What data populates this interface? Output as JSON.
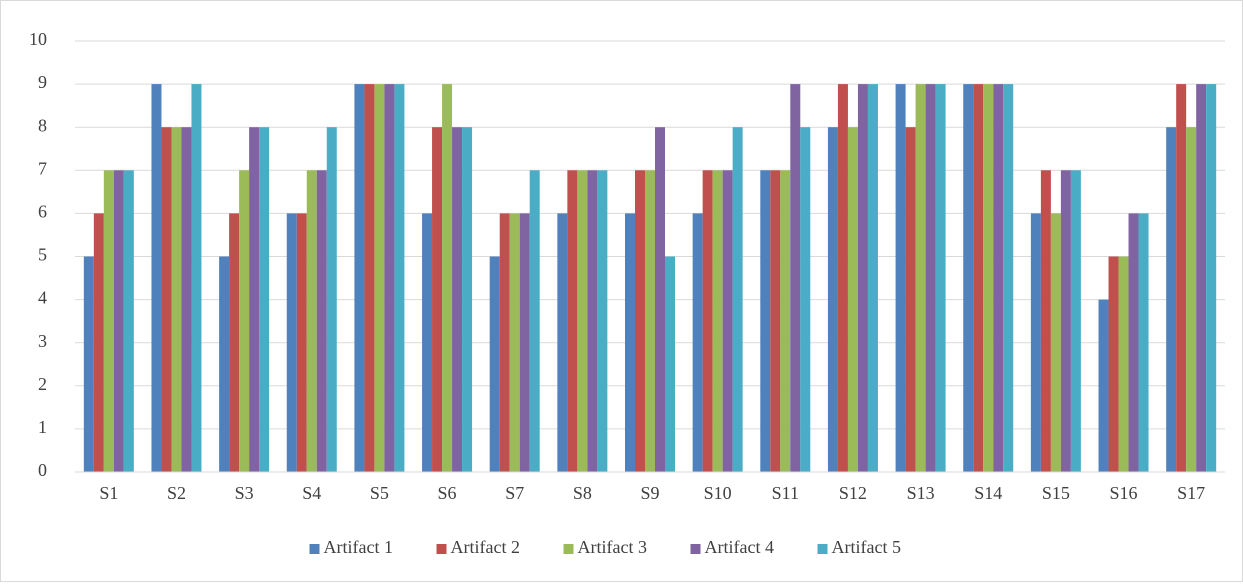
{
  "chart_data": {
    "type": "bar",
    "categories": [
      "S1",
      "S2",
      "S3",
      "S4",
      "S5",
      "S6",
      "S7",
      "S8",
      "S9",
      "S10",
      "S11",
      "S12",
      "S13",
      "S14",
      "S15",
      "S16",
      "S17"
    ],
    "series": [
      {
        "name": "Artifact 1",
        "color": "#4f81bd",
        "values": [
          5,
          9,
          5,
          6,
          9,
          6,
          5,
          6,
          6,
          6,
          7,
          8,
          9,
          9,
          6,
          4,
          8
        ]
      },
      {
        "name": "Artifact 2",
        "color": "#c0504d",
        "values": [
          6,
          8,
          6,
          6,
          9,
          8,
          6,
          7,
          7,
          7,
          7,
          9,
          8,
          9,
          7,
          5,
          9
        ]
      },
      {
        "name": "Artifact 3",
        "color": "#9bbb59",
        "values": [
          7,
          8,
          7,
          7,
          9,
          9,
          6,
          7,
          7,
          7,
          7,
          8,
          9,
          9,
          6,
          5,
          8
        ]
      },
      {
        "name": "Artifact 4",
        "color": "#8064a2",
        "values": [
          7,
          8,
          8,
          7,
          9,
          8,
          6,
          7,
          8,
          7,
          9,
          9,
          9,
          9,
          7,
          6,
          9
        ]
      },
      {
        "name": "Artifact 5",
        "color": "#4bacc6",
        "values": [
          7,
          9,
          8,
          8,
          9,
          8,
          7,
          7,
          5,
          8,
          8,
          9,
          9,
          9,
          7,
          6,
          9
        ]
      }
    ],
    "ylim": [
      0,
      10
    ],
    "yticks": [
      0,
      1,
      2,
      3,
      4,
      5,
      6,
      7,
      8,
      9,
      10
    ],
    "grid": true,
    "legend": "bottom"
  }
}
